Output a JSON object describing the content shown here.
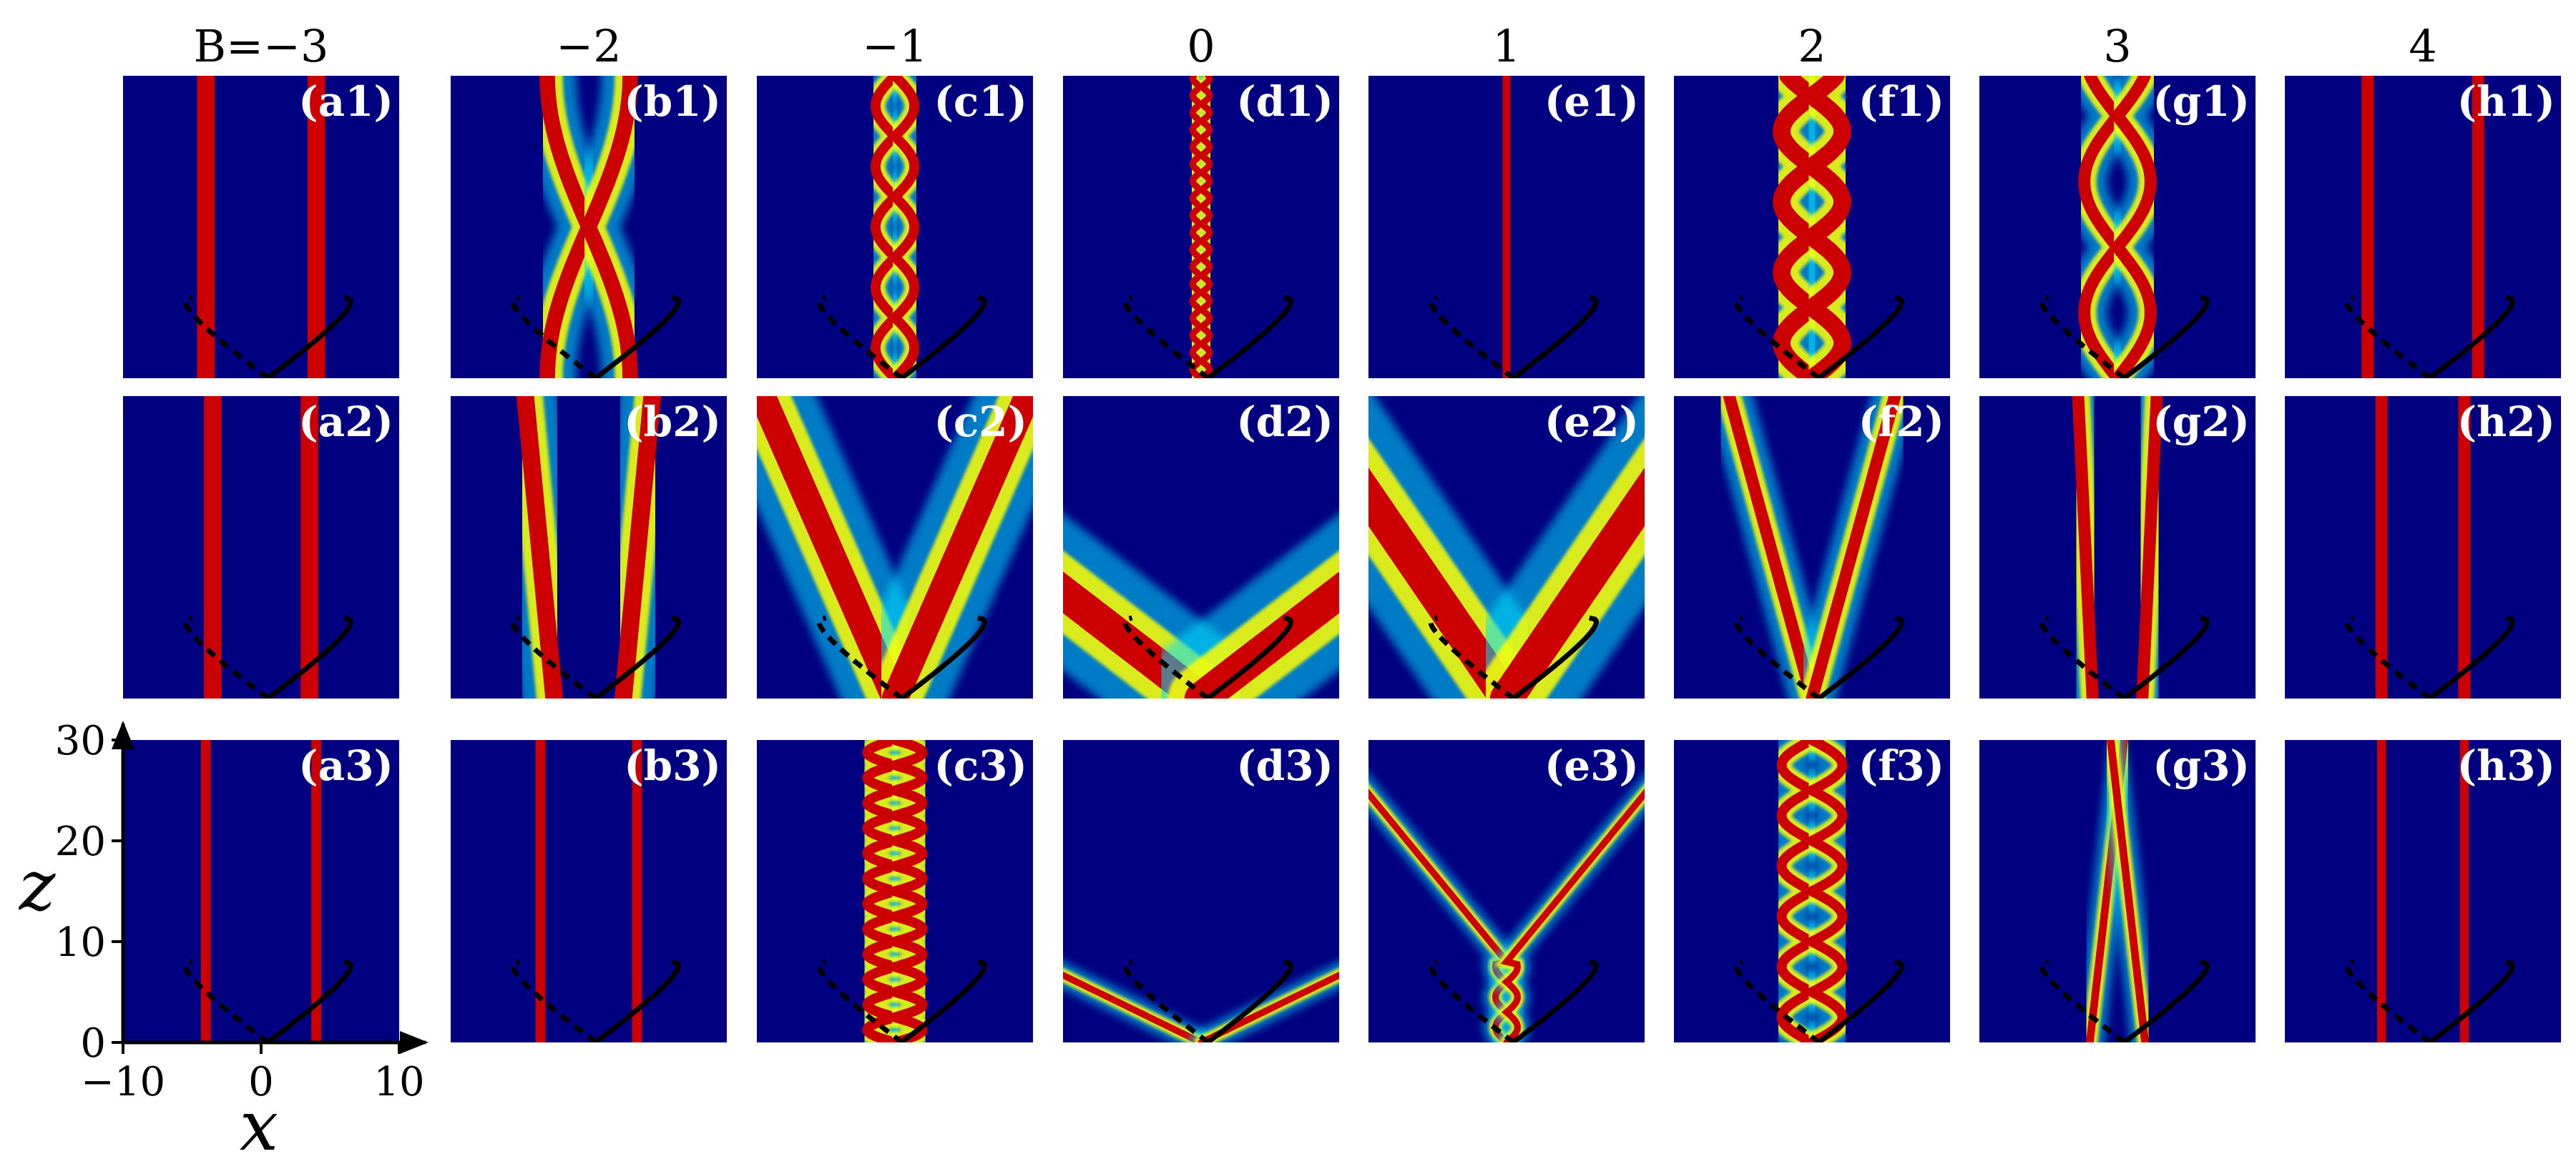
{
  "chart_data": {
    "type": "heatmap",
    "column_titles": [
      "B=−3",
      "−2",
      "−1",
      "0",
      "1",
      "2",
      "3",
      "4"
    ],
    "B_values": [
      -3,
      -2,
      -1,
      0,
      1,
      2,
      3,
      4
    ],
    "panel_labels": [
      [
        "(a1)",
        "(b1)",
        "(c1)",
        "(d1)",
        "(e1)",
        "(f1)",
        "(g1)",
        "(h1)"
      ],
      [
        "(a2)",
        "(b2)",
        "(c2)",
        "(d2)",
        "(e2)",
        "(f2)",
        "(g2)",
        "(h2)"
      ],
      [
        "(a3)",
        "(b3)",
        "(c3)",
        "(d3)",
        "(e3)",
        "(f3)",
        "(g3)",
        "(h3)"
      ]
    ],
    "xlabel": "x",
    "ylabel": "z",
    "xlim": [
      -10,
      10
    ],
    "ylim": [
      0,
      30
    ],
    "xticks": [
      "−10",
      "0",
      "10"
    ],
    "yticks": [
      "0",
      "10",
      "20",
      "30"
    ],
    "colormap": "jet",
    "colors": {
      "background": "#000080",
      "beam_core": "#cc0000",
      "beam_edge": "#ffff00",
      "beam_glow": "#00e0ff",
      "curve": "#000000"
    },
    "panels": [
      [
        {
          "pattern": "parallel",
          "sep": 4.0,
          "width": 0.8,
          "tilt": 0
        },
        {
          "pattern": "breather",
          "sep": 3.0,
          "width": 0.7,
          "period": 30,
          "phase": 15
        },
        {
          "pattern": "breather",
          "sep": 1.4,
          "width": 0.45,
          "period": 6,
          "phase": 0
        },
        {
          "pattern": "breather",
          "sep": 0.6,
          "width": 0.3,
          "period": 1.7,
          "phase": 0
        },
        {
          "pattern": "single",
          "sep": 0,
          "width": 0.35,
          "tilt": 0
        },
        {
          "pattern": "breather",
          "sep": 2.2,
          "width": 0.8,
          "period": 7,
          "phase": 0
        },
        {
          "pattern": "breather",
          "sep": 2.4,
          "width": 0.55,
          "period": 13,
          "phase": 0
        },
        {
          "pattern": "parallel",
          "sep": 4.0,
          "width": 0.55,
          "tilt": 0
        }
      ],
      [
        {
          "pattern": "parallel",
          "sep": 3.5,
          "width": 0.8,
          "tilt": 0
        },
        {
          "pattern": "parallel",
          "sep": 2.5,
          "width": 0.8,
          "tilt": 0.07
        },
        {
          "pattern": "parallel",
          "sep": 0,
          "width": 1.2,
          "tilt": 0.32
        },
        {
          "pattern": "parallel",
          "sep": 0,
          "width": 1.5,
          "tilt": 0.95
        },
        {
          "pattern": "parallel",
          "sep": 0,
          "width": 1.5,
          "tilt": 0.5
        },
        {
          "pattern": "parallel",
          "sep": 0,
          "width": 0.55,
          "tilt": 0.2
        },
        {
          "pattern": "parallel",
          "sep": 1.8,
          "width": 0.55,
          "tilt": 0.035
        },
        {
          "pattern": "parallel",
          "sep": 3.0,
          "width": 0.55,
          "tilt": 0
        }
      ],
      [
        {
          "pattern": "parallel",
          "sep": 4.0,
          "width": 0.45,
          "tilt": 0
        },
        {
          "pattern": "parallel",
          "sep": 3.5,
          "width": 0.45,
          "tilt": 0
        },
        {
          "pattern": "breather",
          "sep": 2.0,
          "width": 0.45,
          "period": 2.5,
          "phase": 0
        },
        {
          "pattern": "parallel",
          "sep": 0,
          "width": 0.3,
          "tilt": 1.5
        },
        {
          "pattern": "v_split",
          "sep": 0.8,
          "width": 0.3,
          "period": 3,
          "split_z": 8,
          "tilt": 0.6
        },
        {
          "pattern": "breather",
          "sep": 2.2,
          "width": 0.45,
          "period": 5,
          "phase": 0
        },
        {
          "pattern": "x_cross",
          "sep": 2.0,
          "width": 0.35,
          "cross_z": 24
        },
        {
          "pattern": "parallel",
          "sep": 3.0,
          "width": 0.4,
          "tilt": 0
        }
      ]
    ]
  }
}
